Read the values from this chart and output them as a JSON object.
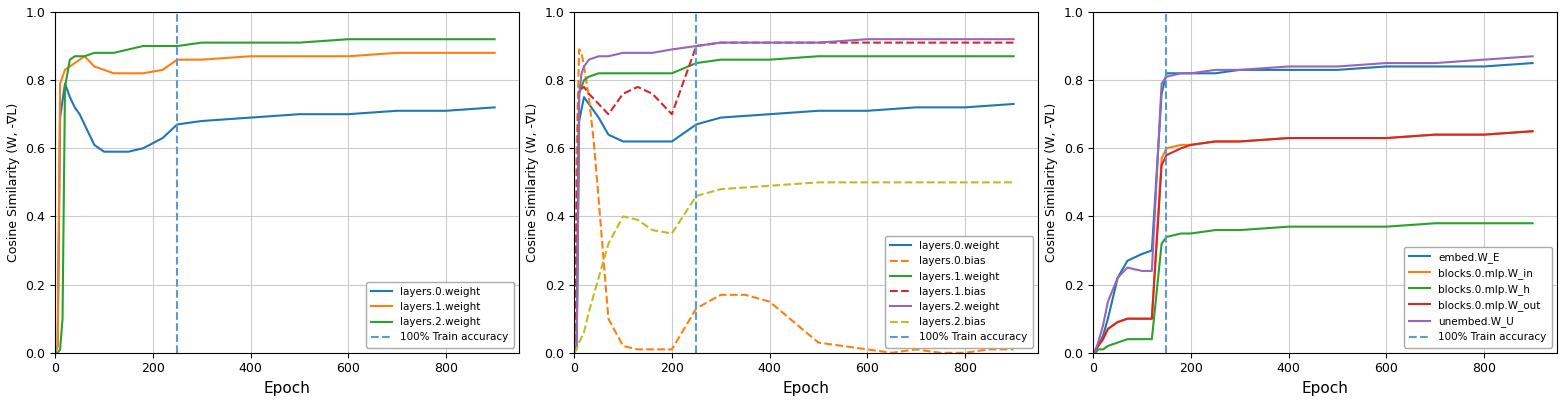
{
  "subplot1": {
    "ylabel": "Cosine Similarity (W, -∇L)",
    "xlabel": "Epoch",
    "vline": 250,
    "vline_label": "100% Train accuracy",
    "ylim": [
      0.0,
      1.0
    ],
    "xlim": [
      0,
      950
    ],
    "series": [
      {
        "label": "layers.0.weight",
        "color": "#1f77b4",
        "linestyle": "-",
        "x": [
          0,
          5,
          10,
          20,
          30,
          40,
          50,
          60,
          80,
          100,
          120,
          150,
          180,
          220,
          250,
          300,
          400,
          500,
          600,
          700,
          800,
          900
        ],
        "y": [
          0.0,
          0.02,
          0.69,
          0.79,
          0.75,
          0.72,
          0.7,
          0.67,
          0.61,
          0.59,
          0.59,
          0.59,
          0.6,
          0.63,
          0.67,
          0.68,
          0.69,
          0.7,
          0.7,
          0.71,
          0.71,
          0.72
        ]
      },
      {
        "label": "layers.1.weight",
        "color": "#ff7f0e",
        "linestyle": "-",
        "x": [
          0,
          5,
          10,
          20,
          30,
          40,
          50,
          60,
          80,
          100,
          120,
          150,
          180,
          220,
          250,
          300,
          400,
          500,
          600,
          700,
          800,
          900
        ],
        "y": [
          0.0,
          0.02,
          0.79,
          0.83,
          0.84,
          0.85,
          0.86,
          0.87,
          0.84,
          0.83,
          0.82,
          0.82,
          0.82,
          0.83,
          0.86,
          0.86,
          0.87,
          0.87,
          0.87,
          0.88,
          0.88,
          0.88
        ]
      },
      {
        "label": "layers.2.weight",
        "color": "#2ca02c",
        "linestyle": "-",
        "x": [
          0,
          5,
          10,
          15,
          20,
          30,
          40,
          50,
          60,
          80,
          100,
          120,
          150,
          180,
          220,
          250,
          300,
          400,
          500,
          600,
          700,
          800,
          900
        ],
        "y": [
          0.0,
          0.0,
          0.01,
          0.1,
          0.78,
          0.86,
          0.87,
          0.87,
          0.87,
          0.88,
          0.88,
          0.88,
          0.89,
          0.9,
          0.9,
          0.9,
          0.91,
          0.91,
          0.91,
          0.92,
          0.92,
          0.92,
          0.92
        ]
      }
    ]
  },
  "subplot2": {
    "ylabel": "Cosine Similarity (W, -∇L)",
    "xlabel": "Epoch",
    "vline": 250,
    "vline_label": "100% Train accuracy",
    "ylim": [
      0.0,
      1.0
    ],
    "xlim": [
      0,
      950
    ],
    "series": [
      {
        "label": "layers.0.weight",
        "color": "#1f77b4",
        "linestyle": "-",
        "x": [
          0,
          5,
          10,
          20,
          30,
          50,
          70,
          100,
          130,
          160,
          200,
          250,
          300,
          400,
          500,
          600,
          700,
          800,
          900
        ],
        "y": [
          0.0,
          0.02,
          0.68,
          0.75,
          0.73,
          0.69,
          0.64,
          0.62,
          0.62,
          0.62,
          0.62,
          0.67,
          0.69,
          0.7,
          0.71,
          0.71,
          0.72,
          0.72,
          0.73
        ]
      },
      {
        "label": "layers.0.bias",
        "color": "#ff7f0e",
        "linestyle": "--",
        "x": [
          0,
          5,
          10,
          15,
          20,
          30,
          40,
          50,
          70,
          100,
          130,
          160,
          200,
          250,
          300,
          350,
          400,
          500,
          600,
          650,
          700,
          750,
          800,
          850,
          900
        ],
        "y": [
          0.0,
          0.6,
          0.89,
          0.88,
          0.84,
          0.75,
          0.62,
          0.45,
          0.1,
          0.02,
          0.01,
          0.01,
          0.01,
          0.13,
          0.17,
          0.17,
          0.15,
          0.03,
          0.01,
          0.0,
          0.01,
          0.0,
          0.0,
          0.01,
          0.01
        ]
      },
      {
        "label": "layers.1.weight",
        "color": "#2ca02c",
        "linestyle": "-",
        "x": [
          0,
          5,
          10,
          20,
          30,
          50,
          70,
          100,
          130,
          160,
          200,
          250,
          300,
          400,
          500,
          600,
          700,
          800,
          900
        ],
        "y": [
          0.0,
          0.02,
          0.76,
          0.8,
          0.81,
          0.82,
          0.82,
          0.82,
          0.82,
          0.82,
          0.82,
          0.85,
          0.86,
          0.86,
          0.87,
          0.87,
          0.87,
          0.87,
          0.87
        ]
      },
      {
        "label": "layers.1.bias",
        "color": "#d62728",
        "linestyle": "--",
        "x": [
          0,
          5,
          10,
          20,
          30,
          50,
          70,
          100,
          130,
          160,
          200,
          250,
          300,
          400,
          500,
          600,
          700,
          800,
          900
        ],
        "y": [
          0.0,
          0.4,
          0.77,
          0.78,
          0.76,
          0.73,
          0.7,
          0.76,
          0.78,
          0.76,
          0.7,
          0.9,
          0.91,
          0.91,
          0.91,
          0.91,
          0.91,
          0.91,
          0.91
        ]
      },
      {
        "label": "layers.2.weight",
        "color": "#9467bd",
        "linestyle": "-",
        "x": [
          0,
          5,
          10,
          15,
          20,
          30,
          50,
          70,
          100,
          130,
          160,
          200,
          250,
          300,
          400,
          500,
          600,
          700,
          800,
          900
        ],
        "y": [
          0.0,
          0.02,
          0.76,
          0.82,
          0.84,
          0.86,
          0.87,
          0.87,
          0.88,
          0.88,
          0.88,
          0.89,
          0.9,
          0.91,
          0.91,
          0.91,
          0.92,
          0.92,
          0.92,
          0.92
        ]
      },
      {
        "label": "layers.2.bias",
        "color": "#bcbd22",
        "linestyle": "--",
        "x": [
          0,
          5,
          10,
          20,
          30,
          50,
          70,
          100,
          130,
          160,
          200,
          250,
          300,
          400,
          500,
          600,
          700,
          800,
          900
        ],
        "y": [
          0.0,
          0.01,
          0.03,
          0.06,
          0.12,
          0.22,
          0.32,
          0.4,
          0.39,
          0.36,
          0.35,
          0.46,
          0.48,
          0.49,
          0.5,
          0.5,
          0.5,
          0.5,
          0.5
        ]
      }
    ]
  },
  "subplot3": {
    "ylabel": "Cosine Similarity (W, -∇L)",
    "xlabel": "Epoch",
    "vline": 150,
    "vline_label": "100% Train accuracy",
    "ylim": [
      0.0,
      1.0
    ],
    "xlim": [
      0,
      950
    ],
    "series": [
      {
        "label": "embed.W_E",
        "color": "#1f77b4",
        "linestyle": "-",
        "x": [
          0,
          5,
          10,
          20,
          30,
          50,
          70,
          100,
          120,
          140,
          150,
          180,
          200,
          250,
          300,
          400,
          500,
          600,
          700,
          800,
          900
        ],
        "y": [
          0.0,
          0.01,
          0.02,
          0.05,
          0.1,
          0.22,
          0.27,
          0.29,
          0.3,
          0.76,
          0.82,
          0.82,
          0.82,
          0.82,
          0.83,
          0.83,
          0.83,
          0.84,
          0.84,
          0.84,
          0.85
        ]
      },
      {
        "label": "blocks.0.mlp.W_in",
        "color": "#ff7f0e",
        "linestyle": "-",
        "x": [
          0,
          5,
          10,
          20,
          30,
          50,
          70,
          100,
          120,
          140,
          150,
          180,
          200,
          250,
          300,
          400,
          500,
          600,
          700,
          800,
          900
        ],
        "y": [
          0.0,
          0.01,
          0.02,
          0.04,
          0.07,
          0.09,
          0.1,
          0.1,
          0.1,
          0.57,
          0.6,
          0.61,
          0.61,
          0.62,
          0.62,
          0.63,
          0.63,
          0.63,
          0.64,
          0.64,
          0.65
        ]
      },
      {
        "label": "blocks.0.mlp.W_h",
        "color": "#2ca02c",
        "linestyle": "-",
        "x": [
          0,
          5,
          10,
          20,
          30,
          50,
          70,
          100,
          120,
          140,
          150,
          180,
          200,
          250,
          300,
          400,
          500,
          600,
          700,
          800,
          900
        ],
        "y": [
          0.0,
          0.0,
          0.01,
          0.01,
          0.02,
          0.03,
          0.04,
          0.04,
          0.04,
          0.32,
          0.34,
          0.35,
          0.35,
          0.36,
          0.36,
          0.37,
          0.37,
          0.37,
          0.38,
          0.38,
          0.38
        ]
      },
      {
        "label": "blocks.0.mlp.W_out",
        "color": "#d62728",
        "linestyle": "-",
        "x": [
          0,
          5,
          10,
          20,
          30,
          50,
          70,
          100,
          120,
          140,
          150,
          180,
          200,
          250,
          300,
          400,
          500,
          600,
          700,
          800,
          900
        ],
        "y": [
          0.0,
          0.01,
          0.02,
          0.04,
          0.07,
          0.09,
          0.1,
          0.1,
          0.1,
          0.55,
          0.58,
          0.6,
          0.61,
          0.62,
          0.62,
          0.63,
          0.63,
          0.63,
          0.64,
          0.64,
          0.65
        ]
      },
      {
        "label": "unembed.W_U",
        "color": "#9467bd",
        "linestyle": "-",
        "x": [
          0,
          5,
          10,
          20,
          30,
          50,
          70,
          100,
          120,
          140,
          150,
          180,
          200,
          250,
          300,
          400,
          500,
          600,
          700,
          800,
          900
        ],
        "y": [
          0.0,
          0.01,
          0.03,
          0.08,
          0.15,
          0.22,
          0.25,
          0.24,
          0.24,
          0.79,
          0.81,
          0.82,
          0.82,
          0.83,
          0.83,
          0.84,
          0.84,
          0.85,
          0.85,
          0.86,
          0.87
        ]
      }
    ]
  },
  "vline_color": "#5b9bd5",
  "background_color": "#ffffff",
  "grid_color": "#cccccc"
}
